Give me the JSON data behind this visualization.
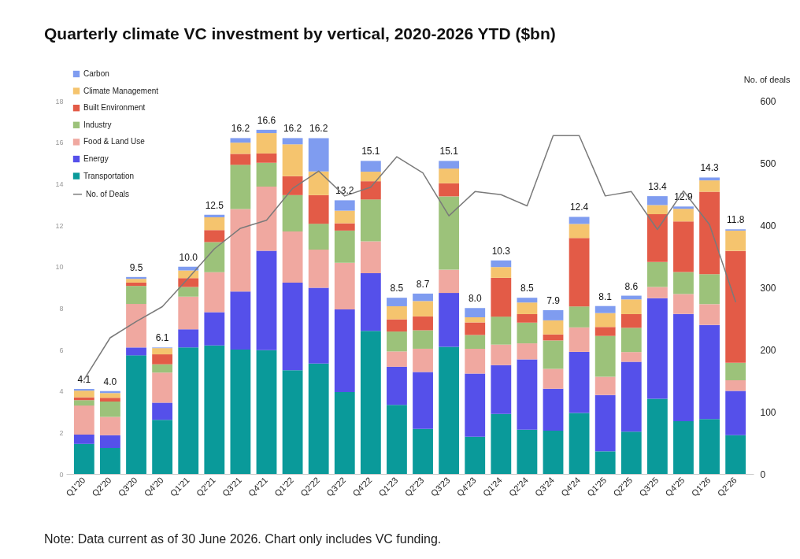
{
  "chart_data": {
    "type": "bar",
    "title": "Quarterly climate VC investment by vertical, 2020-2026 YTD ($bn)",
    "y2label": "No. of deals",
    "categories": [
      "Q1'20",
      "Q2'20",
      "Q3'20",
      "Q4'20",
      "Q1'21",
      "Q2'21",
      "Q3'21",
      "Q4'21",
      "Q1'22",
      "Q2'22",
      "Q3'22",
      "Q4'22",
      "Q1'23",
      "Q2'23",
      "Q3'23",
      "Q4'23",
      "Q1'24",
      "Q2'24",
      "Q3'24",
      "Q4'24",
      "Q1'25",
      "Q2'25",
      "Q3'25",
      "Q4'25",
      "Q1'26",
      "Q2'26"
    ],
    "stacked": true,
    "ylim": [
      0,
      18
    ],
    "yticks": [
      0,
      2,
      4,
      6,
      8,
      10,
      12,
      14,
      16,
      18
    ],
    "y2lim": [
      0,
      600
    ],
    "y2ticks": [
      0,
      100,
      200,
      300,
      400,
      500,
      600
    ],
    "series": [
      {
        "name": "Transportation",
        "color": "#0a9a9a",
        "values": [
          1.45,
          1.25,
          5.72,
          2.61,
          6.1,
          6.2,
          6.0,
          5.97,
          5.0,
          5.33,
          3.95,
          6.9,
          3.33,
          2.17,
          6.13,
          1.79,
          2.9,
          2.14,
          2.09,
          2.94,
          1.09,
          2.04,
          3.63,
          2.54,
          2.65,
          1.87
        ]
      },
      {
        "name": "Energy",
        "color": "#5550ea",
        "values": [
          0.45,
          0.62,
          0.38,
          0.83,
          0.88,
          1.6,
          2.8,
          4.8,
          4.23,
          3.65,
          3.99,
          2.78,
          1.84,
          2.75,
          2.6,
          3.05,
          2.35,
          3.39,
          2.02,
          2.95,
          2.72,
          3.37,
          4.85,
          5.18,
          4.54,
          2.14
        ]
      },
      {
        "name": "Food & Land Use",
        "color": "#f0a8a0",
        "values": [
          1.4,
          0.88,
          2.1,
          1.45,
          1.57,
          1.93,
          3.98,
          3.09,
          2.47,
          1.84,
          2.25,
          1.54,
          0.74,
          1.12,
          1.12,
          1.2,
          0.99,
          0.77,
          0.96,
          1.18,
          0.88,
          0.47,
          0.54,
          0.96,
          1.0,
          0.51
        ]
      },
      {
        "name": "Industry",
        "color": "#9cc27a",
        "values": [
          0.26,
          0.74,
          0.87,
          0.4,
          0.47,
          1.45,
          2.13,
          1.15,
          1.75,
          1.25,
          1.55,
          2.02,
          0.96,
          0.89,
          3.54,
          0.66,
          1.35,
          1.0,
          1.37,
          1.01,
          1.97,
          1.17,
          1.2,
          1.06,
          1.45,
          0.84
        ]
      },
      {
        "name": "Built Environment",
        "color": "#e35b47",
        "values": [
          0.14,
          0.18,
          0.16,
          0.48,
          0.43,
          0.58,
          0.53,
          0.45,
          0.91,
          1.38,
          0.35,
          0.88,
          0.59,
          0.67,
          0.63,
          0.61,
          1.87,
          0.41,
          0.29,
          3.3,
          0.43,
          0.66,
          2.31,
          2.44,
          3.97,
          5.4
        ]
      },
      {
        "name": "Climate Management",
        "color": "#f5c46e",
        "values": [
          0.32,
          0.23,
          0.18,
          0.3,
          0.37,
          0.62,
          0.54,
          0.98,
          1.54,
          1.14,
          0.61,
          0.46,
          0.63,
          0.74,
          0.71,
          0.25,
          0.52,
          0.56,
          0.68,
          0.68,
          0.67,
          0.71,
          0.44,
          0.61,
          0.55,
          0.98
        ]
      },
      {
        "name": "Carbon",
        "color": "#7f9cf0",
        "values": [
          0.08,
          0.1,
          0.09,
          0.03,
          0.18,
          0.12,
          0.22,
          0.16,
          0.3,
          1.61,
          0.5,
          0.52,
          0.41,
          0.36,
          0.37,
          0.44,
          0.32,
          0.23,
          0.49,
          0.34,
          0.34,
          0.18,
          0.43,
          0.11,
          0.14,
          0.06
        ]
      },
      {
        "name": "No. of Deals",
        "type": "line",
        "axis": "y2",
        "color": "#7a7a7a",
        "values": [
          152,
          219,
          245,
          269,
          315,
          362,
          395,
          408,
          459,
          487,
          447,
          461,
          510,
          484,
          415,
          454,
          449,
          431,
          544,
          544,
          447,
          454,
          393,
          455,
          401,
          277
        ]
      }
    ],
    "totals": [
      "4.1",
      "4.0",
      "9.5",
      "6.1",
      "10.0",
      "12.5",
      "16.2",
      "16.6",
      "16.2",
      "16.2",
      "13.2",
      "15.1",
      "8.5",
      "8.7",
      "15.1",
      "8.0",
      "10.3",
      "8.5",
      "7.9",
      "12.4",
      "8.1",
      "8.6",
      "13.4",
      "12.9",
      "14.3",
      "11.8"
    ],
    "legend": "top left",
    "annotations": [
      "Note: Data current as of 30 June 2026. Chart only includes VC funding."
    ]
  }
}
